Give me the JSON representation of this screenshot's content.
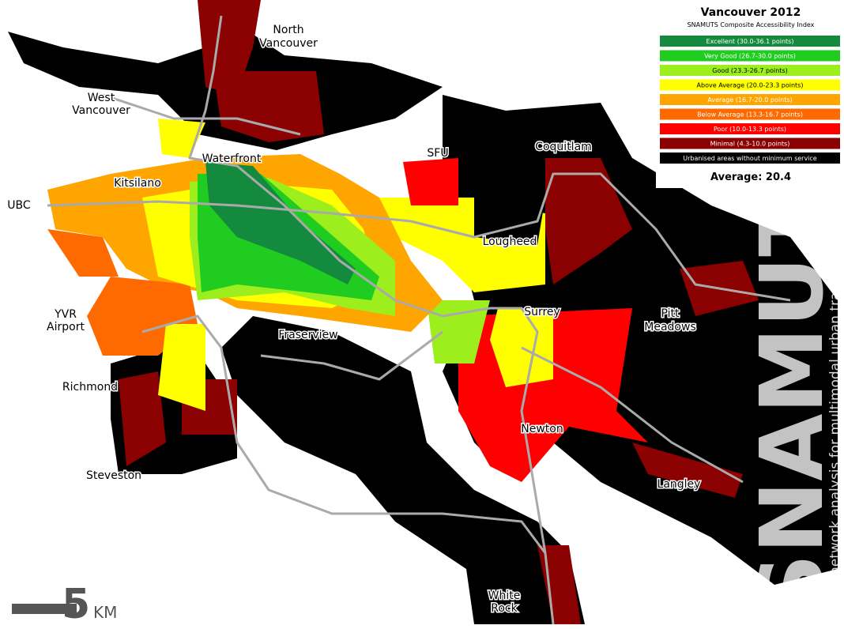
{
  "legend": {
    "title": "Vancouver 2012",
    "subtitle": "SNAMUTS Composite Accessibility Index",
    "items": [
      {
        "label": "Excellent (30.0-36.1 points)",
        "color": "#138a3e"
      },
      {
        "label": "Very Good (26.7-30.0 points)",
        "color": "#1fcc1f"
      },
      {
        "label": "Good (23.3-26.7 points)",
        "color": "#9cee1c"
      },
      {
        "label": "Above Average (20.0-23.3 points)",
        "color": "#ffff00"
      },
      {
        "label": "Average (16.7-20.0 points)",
        "color": "#ffa500"
      },
      {
        "label": "Below Average (13.3-16.7 points)",
        "color": "#ff6a00"
      },
      {
        "label": "Poor (10.0-13.3 points)",
        "color": "#ff0000"
      },
      {
        "label": "Minimal (4.3-10.0 points)",
        "color": "#8b0000"
      },
      {
        "label": "Urbanised areas without minimum service",
        "color": "#000000"
      }
    ],
    "average": "Average: 20.4"
  },
  "places": [
    [
      "North",
      "Vancouver"
    ],
    [
      "West",
      "Vancouver"
    ],
    [
      "Waterfront"
    ],
    [
      "Kitsilano"
    ],
    [
      "UBC"
    ],
    [
      "SFU"
    ],
    [
      "Coquitlam"
    ],
    [
      "Lougheed"
    ],
    [
      "YVR",
      "Airport"
    ],
    [
      "Fraserview"
    ],
    [
      "Surrey"
    ],
    [
      "Pitt",
      "Meadows"
    ],
    [
      "Richmond"
    ],
    [
      "Newton"
    ],
    [
      "Steveston"
    ],
    [
      "Langley"
    ],
    [
      "White",
      "Rock"
    ]
  ],
  "scale": {
    "number": "5",
    "unit": "KM"
  },
  "watermark": {
    "logo": "SNAMUTS",
    "tagline": "spatial network analysis for multimodal urban transport systems"
  }
}
